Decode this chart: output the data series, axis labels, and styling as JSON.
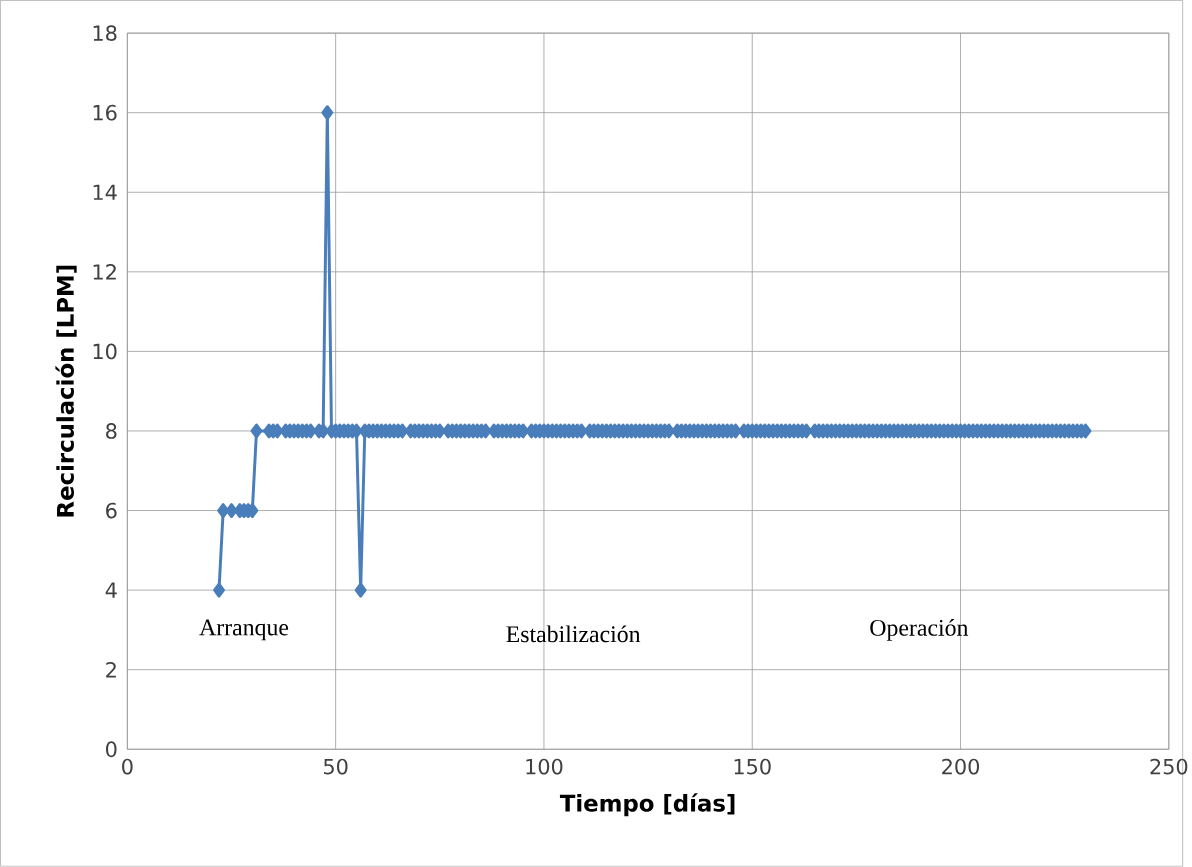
{
  "chart_data": {
    "type": "line",
    "xlabel": "Tiempo [días]",
    "ylabel": "Recirculación [LPM]",
    "x": [
      22,
      23,
      25,
      27,
      28,
      29,
      30,
      31,
      34,
      35,
      36,
      38,
      39,
      40,
      41,
      42,
      43,
      44,
      46,
      47,
      48,
      49,
      50,
      51,
      52,
      53,
      54,
      55,
      56,
      57,
      58,
      59,
      60,
      61,
      62,
      63,
      64,
      65,
      66,
      68,
      69,
      70,
      71,
      72,
      73,
      74,
      75,
      77,
      78,
      79,
      80,
      81,
      82,
      83,
      84,
      85,
      86,
      88,
      89,
      90,
      91,
      92,
      93,
      94,
      95,
      97,
      98,
      99,
      100,
      101,
      102,
      103,
      104,
      105,
      106,
      107,
      108,
      109,
      111,
      112,
      113,
      114,
      115,
      116,
      117,
      118,
      119,
      120,
      121,
      122,
      123,
      124,
      125,
      126,
      127,
      128,
      129,
      130,
      132,
      133,
      134,
      135,
      136,
      137,
      138,
      139,
      140,
      141,
      142,
      143,
      144,
      145,
      146,
      148,
      149,
      150,
      151,
      152,
      153,
      154,
      155,
      156,
      157,
      158,
      159,
      160,
      161,
      162,
      163,
      165,
      166,
      167,
      168,
      169,
      170,
      171,
      172,
      173,
      174,
      175,
      176,
      177,
      178,
      179,
      180,
      181,
      182,
      183,
      184,
      185,
      186,
      187,
      188,
      189,
      190,
      191,
      192,
      193,
      194,
      195,
      196,
      197,
      198,
      199,
      200,
      201,
      202,
      203,
      204,
      205,
      206,
      207,
      208,
      209,
      210,
      211,
      212,
      213,
      214,
      215,
      216,
      217,
      218,
      219,
      220,
      221,
      222,
      223,
      224,
      225,
      226,
      227,
      228,
      229,
      230
    ],
    "values": [
      4,
      6,
      6,
      6,
      6,
      6,
      6,
      8,
      8,
      8,
      8,
      8,
      8,
      8,
      8,
      8,
      8,
      8,
      8,
      8,
      16,
      8,
      8,
      8,
      8,
      8,
      8,
      8,
      4,
      8,
      8,
      8,
      8,
      8,
      8,
      8,
      8,
      8,
      8,
      8,
      8,
      8,
      8,
      8,
      8,
      8,
      8,
      8,
      8,
      8,
      8,
      8,
      8,
      8,
      8,
      8,
      8,
      8,
      8,
      8,
      8,
      8,
      8,
      8,
      8,
      8,
      8,
      8,
      8,
      8,
      8,
      8,
      8,
      8,
      8,
      8,
      8,
      8,
      8,
      8,
      8,
      8,
      8,
      8,
      8,
      8,
      8,
      8,
      8,
      8,
      8,
      8,
      8,
      8,
      8,
      8,
      8,
      8,
      8,
      8,
      8,
      8,
      8,
      8,
      8,
      8,
      8,
      8,
      8,
      8,
      8,
      8,
      8,
      8,
      8,
      8,
      8,
      8,
      8,
      8,
      8,
      8,
      8,
      8,
      8,
      8,
      8,
      8,
      8,
      8,
      8,
      8,
      8,
      8,
      8,
      8,
      8,
      8,
      8,
      8,
      8,
      8,
      8,
      8,
      8,
      8,
      8,
      8,
      8,
      8,
      8,
      8,
      8,
      8,
      8,
      8,
      8,
      8,
      8,
      8,
      8,
      8,
      8,
      8,
      8,
      8,
      8,
      8,
      8,
      8,
      8,
      8,
      8,
      8,
      8,
      8,
      8,
      8,
      8,
      8,
      8,
      8,
      8,
      8,
      8,
      8,
      8,
      8,
      8,
      8,
      8,
      8,
      8,
      8,
      8
    ],
    "color": "#4a7ebb",
    "marker": "diamond",
    "line_style": "solid",
    "grid": true,
    "xlim": [
      0,
      250
    ],
    "ylim": [
      0,
      18
    ],
    "xticks": [
      0,
      50,
      100,
      150,
      200,
      250
    ],
    "yticks": [
      0,
      2,
      4,
      6,
      8,
      10,
      12,
      14,
      16,
      18
    ],
    "annotations": [
      "Arranque",
      "Estabilización",
      "Operación"
    ]
  }
}
